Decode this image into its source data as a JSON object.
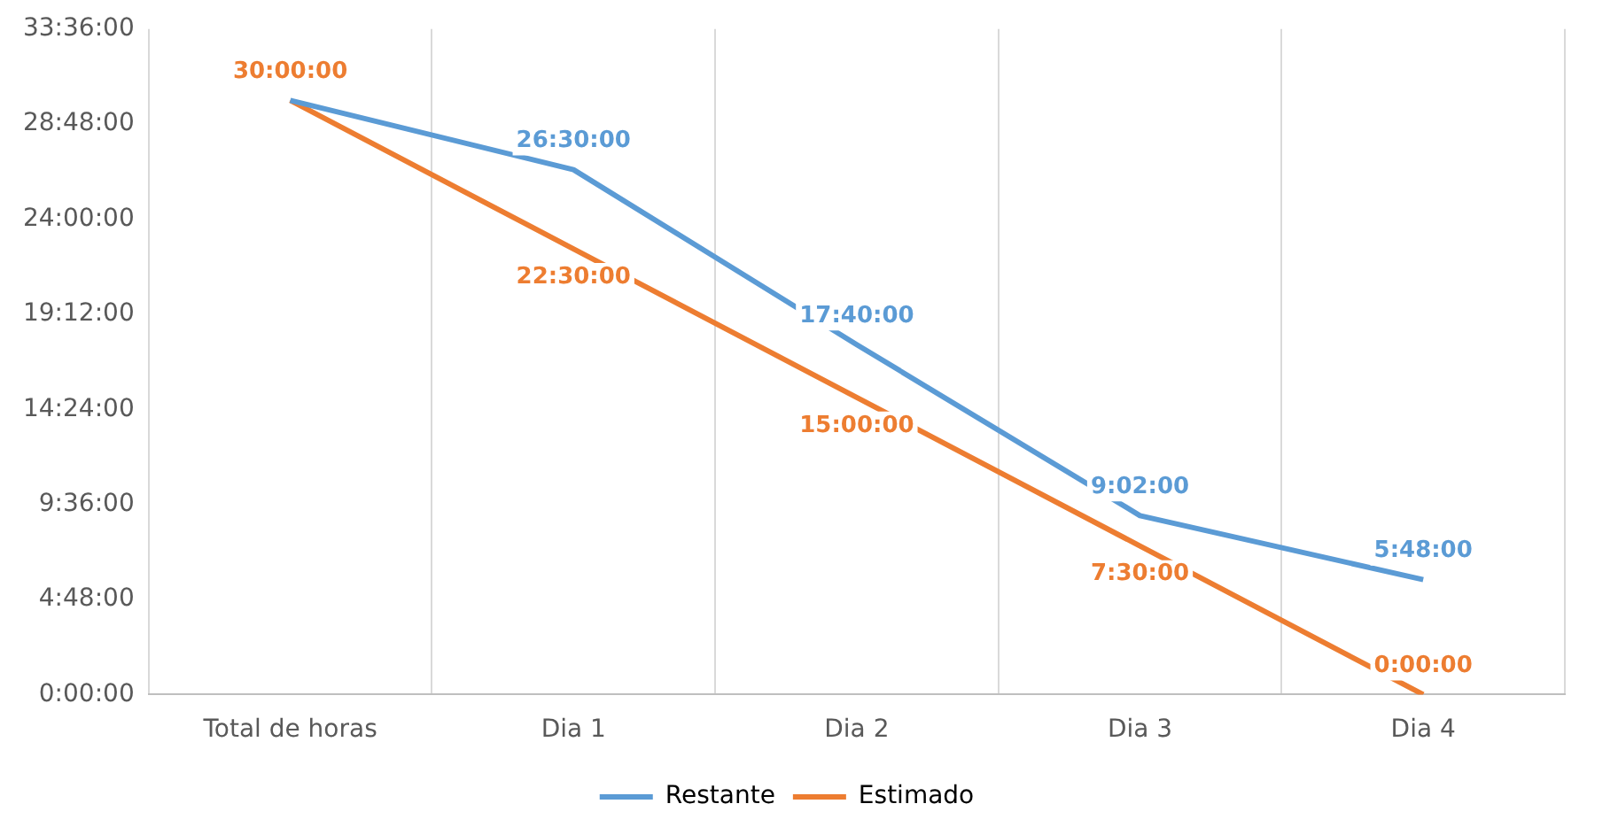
{
  "chart_data": {
    "type": "line",
    "categories": [
      "Total de horas",
      "Dia 1",
      "Dia 2",
      "Dia 3",
      "Dia 4"
    ],
    "series": [
      {
        "name": "Restante",
        "color": "#5b9bd5",
        "values": [
          30,
          26.5,
          17.6666667,
          9.0333333,
          5.8
        ],
        "value_labels": [
          null,
          "26:30:00",
          "17:40:00",
          "9:02:00",
          "5:48:00"
        ]
      },
      {
        "name": "Estimado",
        "color": "#ed7d31",
        "values": [
          30,
          22.5,
          15,
          7.5,
          0
        ],
        "value_labels": [
          "30:00:00",
          "22:30:00",
          "15:00:00",
          "7:30:00",
          "0:00:00"
        ]
      }
    ],
    "ylim": [
      0,
      33.6
    ],
    "yticks": [
      {
        "value": 0,
        "label": "0:00:00"
      },
      {
        "value": 4.8,
        "label": "4:48:00"
      },
      {
        "value": 9.6,
        "label": "9:36:00"
      },
      {
        "value": 14.4,
        "label": "14:24:00"
      },
      {
        "value": 19.2,
        "label": "19:12:00"
      },
      {
        "value": 24,
        "label": "24:00:00"
      },
      {
        "value": 28.8,
        "label": "28:48:00"
      },
      {
        "value": 33.6,
        "label": "33:36:00"
      }
    ],
    "grid": "x",
    "legend": "bottom",
    "marker": "none",
    "line_style": "solid"
  }
}
